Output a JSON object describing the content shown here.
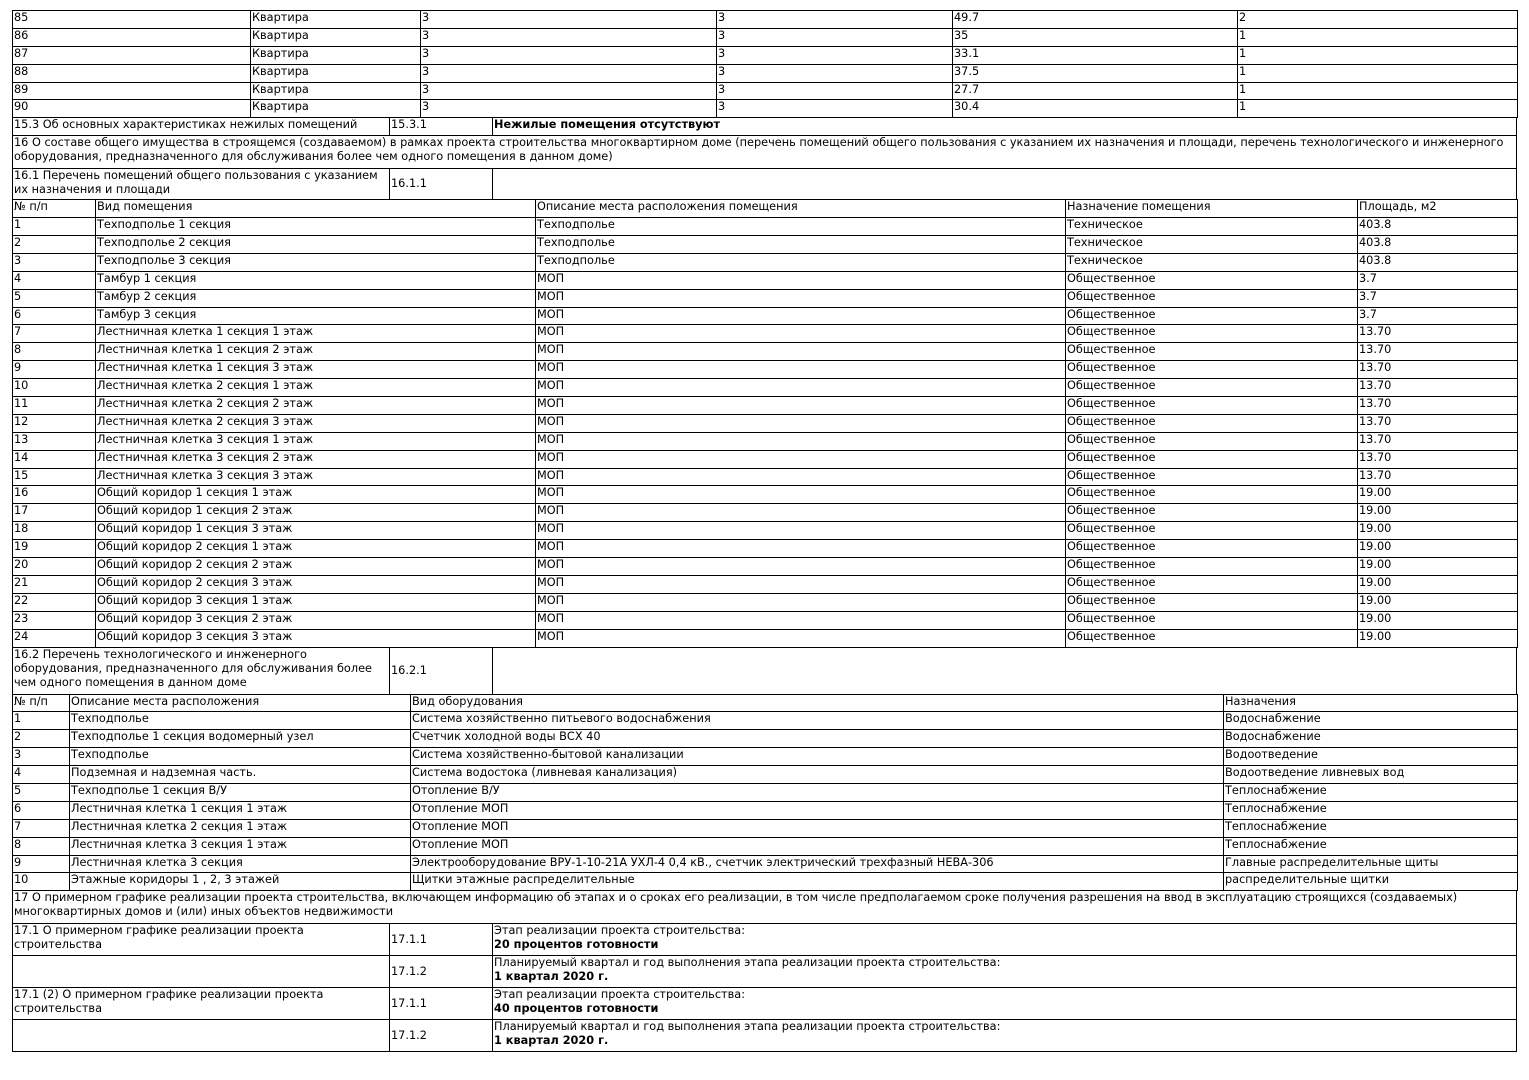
{
  "apartments": {
    "rows": [
      [
        "85",
        "Квартира",
        "3",
        "3",
        "49.7",
        "2"
      ],
      [
        "86",
        "Квартира",
        "3",
        "3",
        "35",
        "1"
      ],
      [
        "87",
        "Квартира",
        "3",
        "3",
        "33.1",
        "1"
      ],
      [
        "88",
        "Квартира",
        "3",
        "3",
        "37.5",
        "1"
      ],
      [
        "89",
        "Квартира",
        "3",
        "3",
        "27.7",
        "1"
      ],
      [
        "90",
        "Квартира",
        "3",
        "3",
        "30.4",
        "1"
      ]
    ]
  },
  "s15_3": {
    "label": "15.3 Об основных характеристиках нежилых помещений",
    "code": "15.3.1",
    "value": "Нежилые помещения отсутствуют"
  },
  "s16": {
    "label": "16 О составе общего имущества в строящемся (создаваемом) в рамках проекта строительства многоквартирном доме (перечень помещений общего пользования с указанием их назначения и площади, перечень технологического и инженерного оборудования, предназначенного для обслуживания более чем одного помещения в данном доме)"
  },
  "s16_1": {
    "label": "16.1 Перечень помещений общего пользования с указанием их назначения и площади",
    "code": "16.1.1"
  },
  "common_rooms": {
    "headers": [
      "№ п/п",
      "Вид помещения",
      "Описание места расположения помещения",
      "Назначение помещения",
      "Площадь, м2"
    ],
    "rows": [
      [
        "1",
        "Техподполье 1 секция",
        "Техподполье",
        "Техническое",
        "403.8"
      ],
      [
        "2",
        "Техподполье 2 секция",
        "Техподполье",
        "Техническое",
        "403.8"
      ],
      [
        "3",
        "Техподполье 3 секция",
        "Техподполье",
        "Техническое",
        "403.8"
      ],
      [
        "4",
        "Тамбур 1 секция",
        "МОП",
        "Общественное",
        "3.7"
      ],
      [
        "5",
        "Тамбур 2 секция",
        "МОП",
        "Общественное",
        "3.7"
      ],
      [
        "6",
        "Тамбур 3 секция",
        "МОП",
        "Общественное",
        "3.7"
      ],
      [
        "7",
        "Лестничная клетка 1 секция 1 этаж",
        "МОП",
        "Общественное",
        "13.70"
      ],
      [
        "8",
        "Лестничная клетка 1 секция 2 этаж",
        "МОП",
        "Общественное",
        "13.70"
      ],
      [
        "9",
        "Лестничная клетка 1 секция 3 этаж",
        "МОП",
        "Общественное",
        "13.70"
      ],
      [
        "10",
        "Лестничная клетка 2 секция 1 этаж",
        "МОП",
        "Общественное",
        "13.70"
      ],
      [
        "11",
        "Лестничная клетка 2 секция 2 этаж",
        "МОП",
        "Общественное",
        "13.70"
      ],
      [
        "12",
        "Лестничная клетка 2 секция 3 этаж",
        "МОП",
        "Общественное",
        "13.70"
      ],
      [
        "13",
        "Лестничная клетка 3 секция 1 этаж",
        "МОП",
        "Общественное",
        "13.70"
      ],
      [
        "14",
        "Лестничная клетка 3 секция 2 этаж",
        "МОП",
        "Общественное",
        "13.70"
      ],
      [
        "15",
        "Лестничная клетка 3 секция 3 этаж",
        "МОП",
        "Общественное",
        "13.70"
      ],
      [
        "16",
        "Общий коридор 1 секция 1 этаж",
        "МОП",
        "Общественное",
        "19.00"
      ],
      [
        "17",
        "Общий коридор 1 секция 2 этаж",
        "МОП",
        "Общественное",
        "19.00"
      ],
      [
        "18",
        "Общий коридор 1 секция 3 этаж",
        "МОП",
        "Общественное",
        "19.00"
      ],
      [
        "19",
        "Общий коридор 2 секция 1 этаж",
        "МОП",
        "Общественное",
        "19.00"
      ],
      [
        "20",
        "Общий коридор 2 секция 2 этаж",
        "МОП",
        "Общественное",
        "19.00"
      ],
      [
        "21",
        "Общий коридор 2 секция 3 этаж",
        "МОП",
        "Общественное",
        "19.00"
      ],
      [
        "22",
        "Общий коридор 3 секция 1 этаж",
        "МОП",
        "Общественное",
        "19.00"
      ],
      [
        "23",
        "Общий коридор 3 секция 2 этаж",
        "МОП",
        "Общественное",
        "19.00"
      ],
      [
        "24",
        "Общий коридор 3 секция 3 этаж",
        "МОП",
        "Общественное",
        "19.00"
      ]
    ]
  },
  "s16_2": {
    "label": "16.2 Перечень технологического и инженерного оборудования, предназначенного для обслуживания более чем одного помещения в данном доме",
    "code": "16.2.1"
  },
  "equipment": {
    "headers": [
      "№ п/п",
      "Описание места расположения",
      "Вид оборудования",
      "Назначения"
    ],
    "rows": [
      [
        "1",
        "Техподполье",
        "Система хозяйственно питьевого водоснабжения",
        "Водоснабжение"
      ],
      [
        "2",
        "Техподполье 1 секция водомерный узел",
        "Счетчик холодной воды ВСХ 40",
        "Водоснабжение"
      ],
      [
        "3",
        "Техподполье",
        "Система хозяйственно-бытовой канализации",
        "Водоотведение"
      ],
      [
        "4",
        "Подземная и надземная часть.",
        "Система водостока (ливневая канализация)",
        "Водоотведение ливневых вод"
      ],
      [
        "5",
        "Техподполье 1 секция В/У",
        "Отопление В/У",
        "Теплоснабжение"
      ],
      [
        "6",
        "Лестничная клетка 1 секция 1 этаж",
        "Отопление МОП",
        "Теплоснабжение"
      ],
      [
        "7",
        "Лестничная клетка 2 секция 1 этаж",
        "Отопление МОП",
        "Теплоснабжение"
      ],
      [
        "8",
        "Лестничная клетка 3 секция 1 этаж",
        "Отопление МОП",
        "Теплоснабжение"
      ],
      [
        "9",
        "Лестничная клетка 3 секция",
        "Электрооборудование ВРУ-1-10-21А УХЛ-4 0,4 кВ., счетчик электрический трехфазный НЕВА-306",
        "Главные распределительные щиты"
      ],
      [
        "10",
        "Этажные коридоры 1 , 2, 3 этажей",
        "Щитки этажные распределительные",
        "распределительные щитки"
      ]
    ]
  },
  "s17": {
    "label": "17 О примерном графике реализации проекта строительства, включающем информацию об этапах и о сроках его реализации, в том числе предполагаемом сроке получения разрешения на ввод в эксплуатацию строящихся (создаваемых) многоквартирных домов и (или) иных объектов недвижимости"
  },
  "schedule": [
    {
      "label": "17.1 О примерном графике реализации проекта строительства",
      "code": "17.1.1",
      "title": "Этап реализации проекта строительства:",
      "value": "20 процентов готовности"
    },
    {
      "label": "",
      "code": "17.1.2",
      "title": "Планируемый квартал и год выполнения этапа реализации проекта строительства:",
      "value": "1 квартал 2020 г."
    },
    {
      "label": "17.1 (2) О примерном графике реализации проекта строительства",
      "code": "17.1.1",
      "title": "Этап реализации проекта строительства:",
      "value": "40 процентов готовности"
    },
    {
      "label": "",
      "code": "17.1.2",
      "title": "Планируемый квартал и год выполнения этапа реализации проекта строительства:",
      "value": "1 квартал 2020 г."
    }
  ]
}
